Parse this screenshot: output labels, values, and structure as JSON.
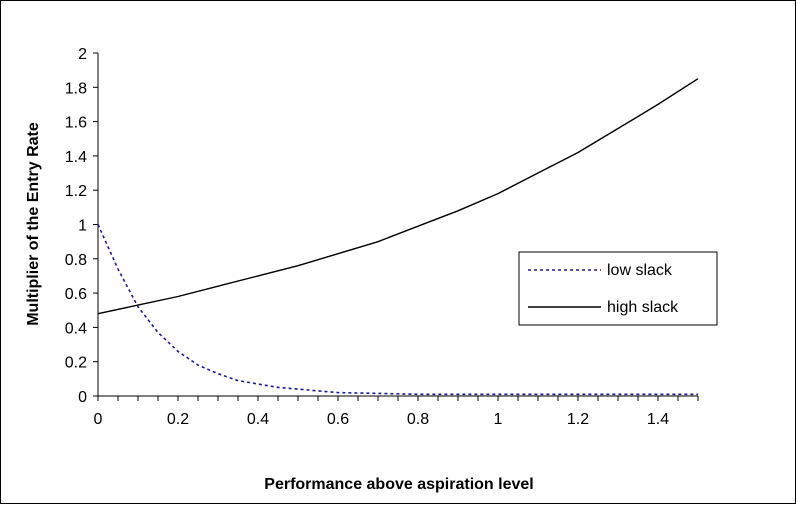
{
  "chart_data": {
    "type": "line",
    "title": "",
    "xlabel": "Performance above aspiration level",
    "ylabel": "Multiplier of the Entry Rate",
    "xlim": [
      0,
      1.5
    ],
    "ylim": [
      0,
      2
    ],
    "x_ticks": [
      "0",
      "0.2",
      "0.4",
      "0.6",
      "0.8",
      "1",
      "1.2",
      "1.4"
    ],
    "y_ticks": [
      "0",
      "0.2",
      "0.4",
      "0.6",
      "0.8",
      "1",
      "1.2",
      "1.4",
      "1.6",
      "1.8",
      "2"
    ],
    "grid": false,
    "legend_position": "right",
    "series": [
      {
        "name": "low slack",
        "style": "dotted",
        "color": "#1a1aa0",
        "x": [
          0,
          0.05,
          0.1,
          0.15,
          0.2,
          0.25,
          0.3,
          0.35,
          0.4,
          0.45,
          0.5,
          0.55,
          0.6,
          0.7,
          0.8,
          0.9,
          1.0,
          1.1,
          1.2,
          1.3,
          1.4,
          1.5
        ],
        "y": [
          1.0,
          0.74,
          0.52,
          0.37,
          0.26,
          0.18,
          0.13,
          0.09,
          0.07,
          0.05,
          0.04,
          0.03,
          0.02,
          0.015,
          0.01,
          0.01,
          0.01,
          0.01,
          0.01,
          0.01,
          0.01,
          0.01
        ]
      },
      {
        "name": "high slack",
        "style": "solid",
        "color": "#000000",
        "x": [
          0,
          0.1,
          0.2,
          0.3,
          0.4,
          0.5,
          0.6,
          0.7,
          0.8,
          0.9,
          1.0,
          1.1,
          1.2,
          1.3,
          1.4,
          1.5
        ],
        "y": [
          0.48,
          0.53,
          0.58,
          0.64,
          0.7,
          0.76,
          0.83,
          0.9,
          0.99,
          1.08,
          1.18,
          1.3,
          1.42,
          1.56,
          1.7,
          1.85
        ]
      }
    ]
  }
}
